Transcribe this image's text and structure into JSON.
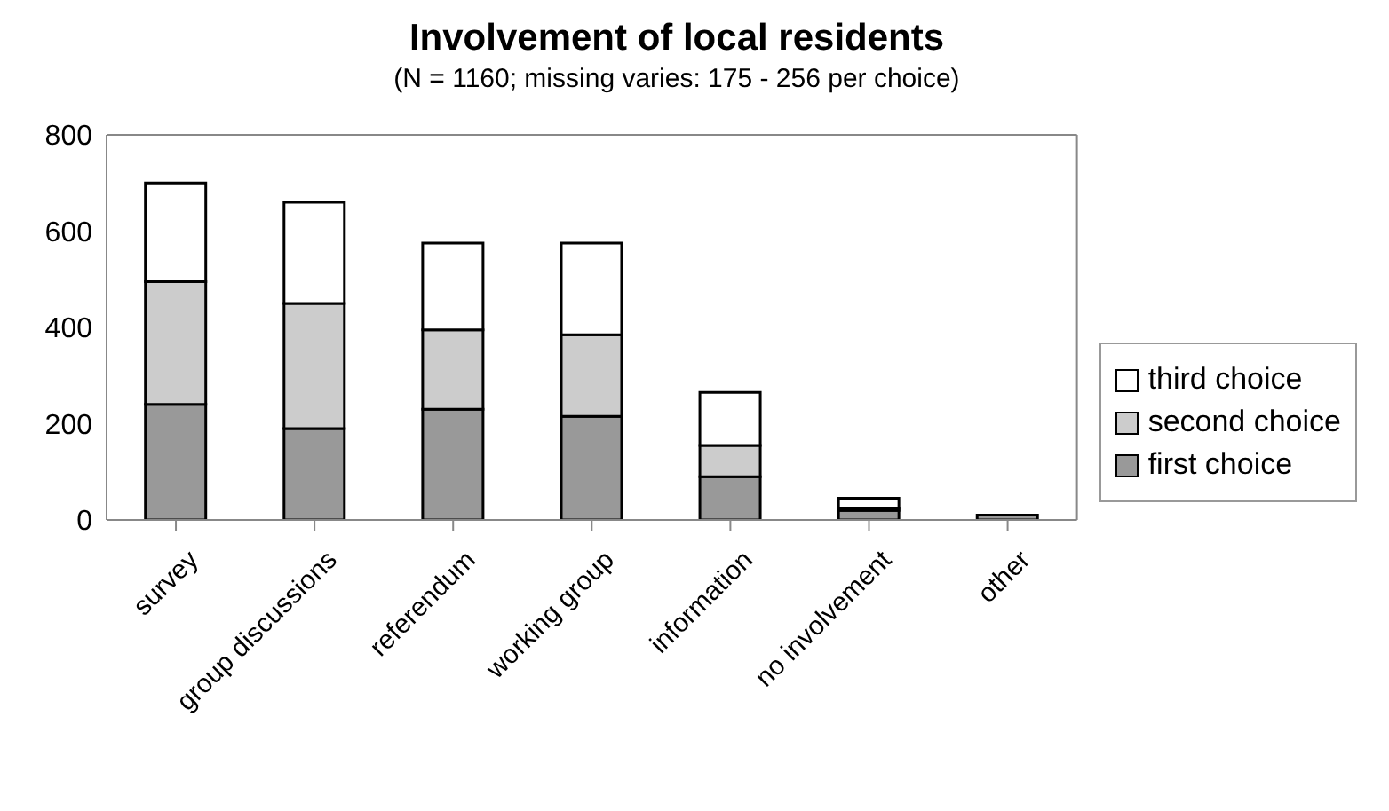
{
  "chart_data": {
    "type": "bar",
    "title": "Involvement of local residents",
    "subtitle": "(N = 1160; missing varies: 175 - 256 per choice)",
    "categories": [
      "survey",
      "group discussions",
      "referendum",
      "working group",
      "information",
      "no involvement",
      "other"
    ],
    "stacked": true,
    "series": [
      {
        "name": "first choice",
        "color": "#999999",
        "values": [
          240,
          190,
          230,
          215,
          90,
          20,
          10
        ]
      },
      {
        "name": "second choice",
        "color": "#cccccc",
        "values": [
          255,
          260,
          165,
          170,
          65,
          5,
          0
        ]
      },
      {
        "name": "third choice",
        "color": "#ffffff",
        "values": [
          205,
          210,
          180,
          190,
          110,
          20,
          0
        ]
      }
    ],
    "ylim": [
      0,
      800
    ],
    "yticks": [
      0,
      200,
      400,
      600,
      800
    ],
    "legend": "right"
  }
}
